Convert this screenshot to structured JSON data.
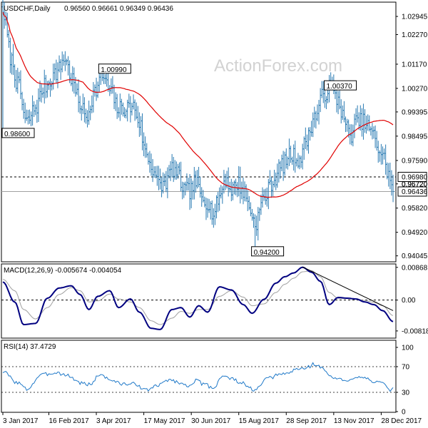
{
  "chart_data": [
    {
      "type": "ohlc",
      "title": "USDCHF,Daily",
      "ohlc_header": "0.96560 0.96661 0.96349 0.96436",
      "watermark": "ActionForex.com",
      "ylim": [
        0.9385,
        1.0345
      ],
      "y_ticks": [
        "1.02945",
        "1.02270",
        "1.01170",
        "1.00270",
        "0.99395",
        "0.98495",
        "0.97590",
        "0.96720",
        "0.95820",
        "0.94920",
        "0.94045"
      ],
      "x_ticks": [
        "3 Jan 2017",
        "16 Feb 2017",
        "3 Apr 2017",
        "17 May 2017",
        "30 Jun 2017",
        "15 Aug 2017",
        "28 Sep 2017",
        "13 Nov 2017",
        "28 Dec 2017"
      ],
      "x_tick_index": [
        0,
        31,
        63,
        95,
        127,
        159,
        191,
        223,
        255
      ],
      "annotations": [
        {
          "text": "1.00990",
          "index": 67,
          "value": 1.0099
        },
        {
          "text": "0.98600",
          "index": 0,
          "value": 0.986
        },
        {
          "text": "1.00370",
          "index": 219,
          "value": 1.0037
        },
        {
          "text": "0.94200",
          "index": 170,
          "value": 0.942
        }
      ],
      "price_levels": [
        {
          "text": "0.96980",
          "value": 0.9698,
          "style": "dashed",
          "color": "#000000"
        },
        {
          "text": "0.96436",
          "value": 0.96436,
          "style": "solid",
          "color": "#a0a0a0"
        }
      ],
      "right_labels": [
        {
          "text": "0.96720",
          "value": 0.9672
        }
      ],
      "ma_color": "#e00000",
      "bar_color": "#2a7bb3",
      "anchors": [
        [
          0,
          1.031,
          1.025
        ],
        [
          6,
          1.013
        ],
        [
          10,
          1.004
        ],
        [
          16,
          0.99
        ],
        [
          22,
          0.9955
        ],
        [
          28,
          1.0035
        ],
        [
          36,
          1.0085
        ],
        [
          42,
          1.014
        ],
        [
          46,
          1.0065
        ],
        [
          52,
          0.997
        ],
        [
          56,
          0.992
        ],
        [
          62,
          1.0015
        ],
        [
          67,
          1.0075
        ],
        [
          72,
          1.002
        ],
        [
          78,
          0.995
        ],
        [
          84,
          0.9955
        ],
        [
          88,
          0.996
        ],
        [
          92,
          0.99
        ],
        [
          96,
          0.979
        ],
        [
          101,
          0.973
        ],
        [
          106,
          0.966
        ],
        [
          110,
          0.968
        ],
        [
          114,
          0.973
        ],
        [
          118,
          0.9705
        ],
        [
          122,
          0.965
        ],
        [
          126,
          0.9645
        ],
        [
          130,
          0.968
        ],
        [
          134,
          0.962
        ],
        [
          138,
          0.9605
        ],
        [
          142,
          0.956
        ],
        [
          146,
          0.9625
        ],
        [
          150,
          0.969
        ],
        [
          154,
          0.965
        ],
        [
          158,
          0.9675
        ],
        [
          163,
          0.964
        ],
        [
          166,
          0.9585
        ],
        [
          170,
          0.9525
        ],
        [
          176,
          0.962
        ],
        [
          182,
          0.968
        ],
        [
          188,
          0.974
        ],
        [
          194,
          0.978
        ],
        [
          200,
          0.9765
        ],
        [
          205,
          0.984
        ],
        [
          210,
          0.992
        ],
        [
          216,
          1.0
        ],
        [
          220,
          1.003
        ],
        [
          226,
          0.9985
        ],
        [
          230,
          0.991
        ],
        [
          234,
          0.985
        ],
        [
          238,
          0.99
        ],
        [
          242,
          0.9905
        ],
        [
          246,
          0.9885
        ],
        [
          250,
          0.985
        ],
        [
          254,
          0.9795
        ],
        [
          257,
          0.9765
        ],
        [
          260,
          0.9705
        ],
        [
          263,
          0.9644
        ]
      ]
    },
    {
      "type": "line",
      "title": "MACD(12,26,9) -0.005674 -0.004054",
      "ylim": [
        -0.0099,
        0.0094
      ],
      "y_ticks": [
        "0.00868",
        "0.00",
        "-0.00818"
      ],
      "series": [
        {
          "name": "MACD",
          "color": "#000080",
          "width": 2.0,
          "anchors": [
            [
              0,
              0.0048
            ],
            [
              8,
              -0.0005
            ],
            [
              14,
              -0.0065
            ],
            [
              22,
              -0.0062
            ],
            [
              30,
              0.0005
            ],
            [
              38,
              0.0032
            ],
            [
              46,
              0.0038
            ],
            [
              52,
              0.0015
            ],
            [
              58,
              -0.0025
            ],
            [
              64,
              0.001
            ],
            [
              72,
              0.0025
            ],
            [
              78,
              -0.002
            ],
            [
              86,
              0.0003
            ],
            [
              92,
              -0.0032
            ],
            [
              100,
              -0.0075
            ],
            [
              106,
              -0.0078
            ],
            [
              114,
              -0.0025
            ],
            [
              120,
              -0.002
            ],
            [
              126,
              -0.0045
            ],
            [
              132,
              -0.0015
            ],
            [
              138,
              -0.0032
            ],
            [
              146,
              0.0035
            ],
            [
              154,
              0.0027
            ],
            [
              162,
              -0.0012
            ],
            [
              168,
              -0.0035
            ],
            [
              176,
              0.0002
            ],
            [
              184,
              0.0045
            ],
            [
              190,
              0.0062
            ],
            [
              196,
              0.0072
            ],
            [
              202,
              0.0087
            ],
            [
              208,
              0.0074
            ],
            [
              214,
              0.005
            ],
            [
              220,
              -0.0012
            ],
            [
              226,
              0.0007
            ],
            [
              232,
              0.0005
            ],
            [
              238,
              0.0003
            ],
            [
              244,
              -0.0005
            ],
            [
              250,
              -0.0012
            ],
            [
              256,
              -0.0028
            ],
            [
              263,
              -0.0057
            ]
          ]
        },
        {
          "name": "Signal",
          "color": "#a0a0a0",
          "width": 1.0,
          "anchors": [
            [
              0,
              0.0055
            ],
            [
              8,
              0.0025
            ],
            [
              14,
              -0.0025
            ],
            [
              22,
              -0.005
            ],
            [
              30,
              -0.002
            ],
            [
              38,
              0.0015
            ],
            [
              46,
              0.0033
            ],
            [
              52,
              0.0025
            ],
            [
              58,
              -0.0005
            ],
            [
              64,
              -0.0002
            ],
            [
              72,
              0.0016
            ],
            [
              78,
              0.0003
            ],
            [
              86,
              -0.0005
            ],
            [
              92,
              -0.002
            ],
            [
              100,
              -0.0055
            ],
            [
              106,
              -0.0065
            ],
            [
              114,
              -0.0048
            ],
            [
              120,
              -0.003
            ],
            [
              126,
              -0.0035
            ],
            [
              132,
              -0.0025
            ],
            [
              138,
              -0.0025
            ],
            [
              146,
              0.001
            ],
            [
              154,
              0.0025
            ],
            [
              162,
              0.0008
            ],
            [
              168,
              -0.0015
            ],
            [
              176,
              -0.001
            ],
            [
              184,
              0.002
            ],
            [
              190,
              0.0042
            ],
            [
              196,
              0.0058
            ],
            [
              202,
              0.0075
            ],
            [
              208,
              0.0078
            ],
            [
              214,
              0.0062
            ],
            [
              220,
              0.002
            ],
            [
              226,
              0.0005
            ],
            [
              232,
              0.0004
            ],
            [
              238,
              0.0003
            ],
            [
              244,
              -0.0001
            ],
            [
              250,
              -0.0006
            ],
            [
              256,
              -0.0015
            ],
            [
              263,
              -0.0041
            ]
          ]
        }
      ],
      "trendline": [
        [
          202,
          0.0088
        ],
        [
          263,
          -0.0028
        ]
      ]
    },
    {
      "type": "line",
      "title": "RSI(14) 37.4729",
      "ylim": [
        0,
        110
      ],
      "y_ticks": [
        "100",
        "70",
        "30",
        "0"
      ],
      "levels": [
        70,
        30
      ],
      "series": [
        {
          "name": "RSI",
          "color": "#1e78c8",
          "width": 1.0,
          "anchors": [
            [
              0,
              62
            ],
            [
              10,
              45
            ],
            [
              16,
              35
            ],
            [
              26,
              57
            ],
            [
              36,
              61
            ],
            [
              44,
              56
            ],
            [
              52,
              45
            ],
            [
              58,
              42
            ],
            [
              66,
              58
            ],
            [
              72,
              50
            ],
            [
              80,
              43
            ],
            [
              90,
              43
            ],
            [
              96,
              33
            ],
            [
              104,
              40
            ],
            [
              112,
              50
            ],
            [
              118,
              46
            ],
            [
              124,
              40
            ],
            [
              130,
              48
            ],
            [
              136,
              42
            ],
            [
              142,
              37
            ],
            [
              148,
              56
            ],
            [
              154,
              51
            ],
            [
              160,
              46
            ],
            [
              166,
              37
            ],
            [
              170,
              33
            ],
            [
              178,
              51
            ],
            [
              186,
              57
            ],
            [
              192,
              60
            ],
            [
              198,
              66
            ],
            [
              204,
              68
            ],
            [
              210,
              74
            ],
            [
              216,
              67
            ],
            [
              220,
              55
            ],
            [
              226,
              51
            ],
            [
              232,
              46
            ],
            [
              238,
              55
            ],
            [
              244,
              54
            ],
            [
              250,
              47
            ],
            [
              256,
              44
            ],
            [
              260,
              33
            ],
            [
              263,
              37.5
            ]
          ]
        }
      ]
    }
  ]
}
